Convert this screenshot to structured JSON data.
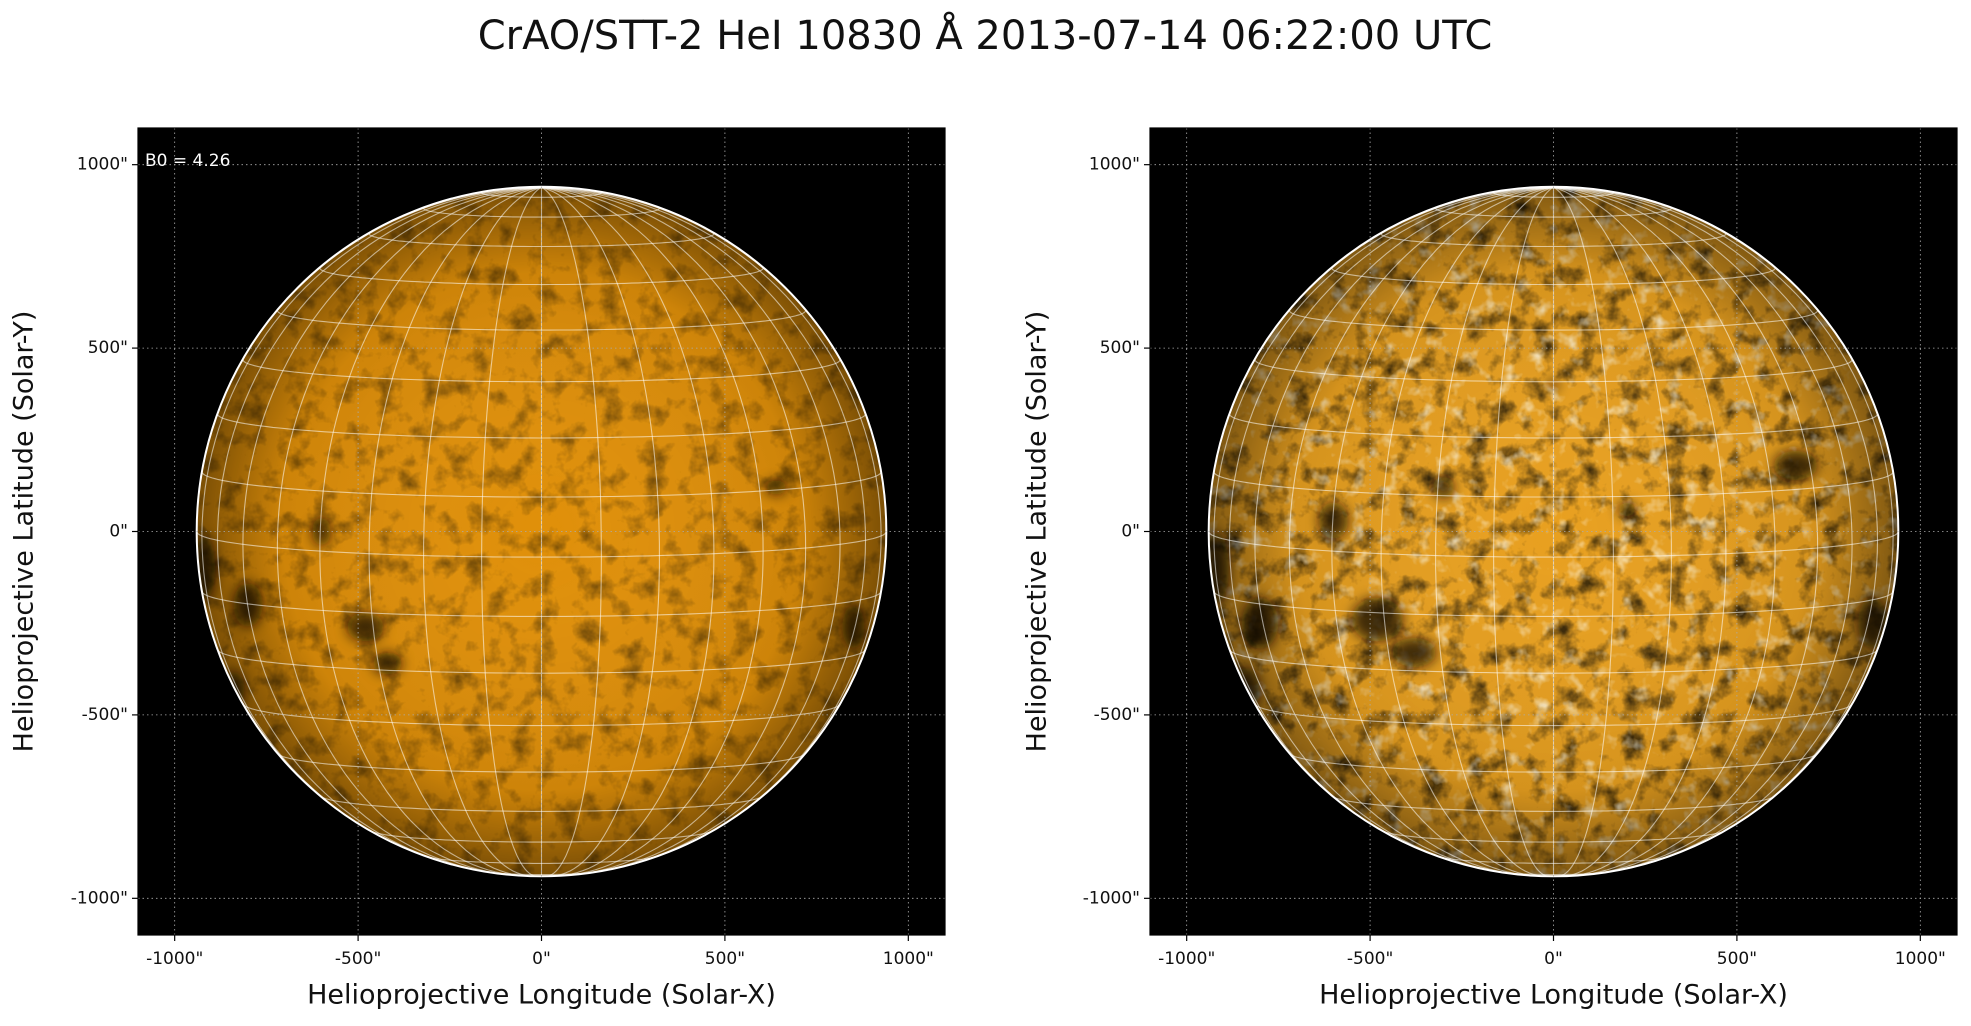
{
  "title": "CrAO/STT-2 HeI 10830 Å 2013-07-14 06:22:00 UTC",
  "chart_data": [
    {
      "type": "image",
      "annotation": "B0 = 4.26",
      "b0": 4.26,
      "xlabel": "Helioprojective Longitude (Solar-X)",
      "ylabel": "Helioprojective Latitude (Solar-Y)",
      "xlim": [
        -1100,
        1100
      ],
      "ylim": [
        -1100,
        1100
      ],
      "xticks": [
        {
          "value": -1000,
          "label": "-1000\""
        },
        {
          "value": -500,
          "label": "-500\""
        },
        {
          "value": 0,
          "label": "0\""
        },
        {
          "value": 500,
          "label": "500\""
        },
        {
          "value": 1000,
          "label": "1000\""
        }
      ],
      "yticks": [
        {
          "value": -1000,
          "label": "-1000\""
        },
        {
          "value": -500,
          "label": "-500\""
        },
        {
          "value": 0,
          "label": "0\""
        },
        {
          "value": 500,
          "label": "500\""
        },
        {
          "value": 1000,
          "label": "1000\""
        }
      ],
      "grid": true,
      "disk_radius": 940,
      "color": "#e0900a"
    },
    {
      "type": "image",
      "xlabel": "Helioprojective Longitude (Solar-X)",
      "ylabel": "Helioprojective Latitude (Solar-Y)",
      "xlim": [
        -1100,
        1100
      ],
      "ylim": [
        -1100,
        1100
      ],
      "xticks": [
        {
          "value": -1000,
          "label": "-1000\""
        },
        {
          "value": -500,
          "label": "-500\""
        },
        {
          "value": 0,
          "label": "0\""
        },
        {
          "value": 500,
          "label": "500\""
        },
        {
          "value": 1000,
          "label": "1000\""
        }
      ],
      "yticks": [
        {
          "value": -1000,
          "label": "-1000\""
        },
        {
          "value": -500,
          "label": "-500\""
        },
        {
          "value": 0,
          "label": "0\""
        },
        {
          "value": 500,
          "label": "500\""
        },
        {
          "value": 1000,
          "label": "1000\""
        }
      ],
      "grid": true,
      "disk_radius": 940,
      "color": "#e8a020"
    }
  ]
}
